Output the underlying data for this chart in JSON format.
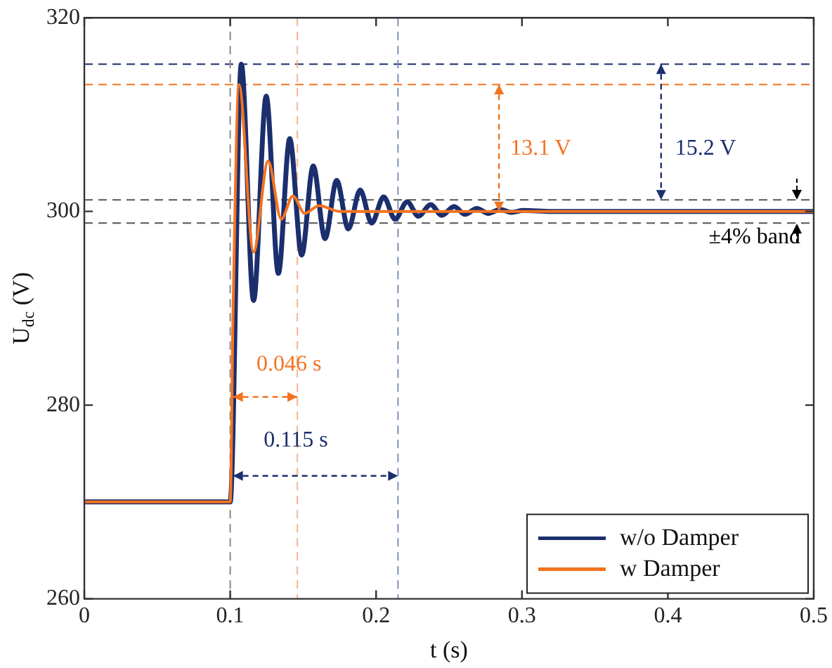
{
  "chart_data": {
    "type": "line",
    "xlabel": "t (s)",
    "ylabel": "U$_{dc}$ (V)",
    "xlim": [
      0,
      0.5
    ],
    "xticks": [
      0,
      0.1,
      0.2,
      0.3,
      0.4,
      0.5
    ],
    "ylim": [
      260,
      320
    ],
    "yticks": [
      260,
      280,
      300,
      320
    ],
    "grid": false,
    "legend": "bottom right",
    "marker": "none",
    "line_style": "solid",
    "series": [
      {
        "name": "w/o Damper",
        "color": "#1b2f6e",
        "x": [
          0,
          0.1,
          0.1076,
          0.116,
          0.1247,
          0.133,
          0.1408,
          0.149,
          0.1569,
          0.165,
          0.173,
          0.181,
          0.1891,
          0.197,
          0.2052,
          0.213,
          0.2213,
          0.229,
          0.2374,
          0.245,
          0.2535,
          0.261,
          0.269,
          0.277,
          0.285,
          0.293,
          0.301,
          0.32,
          0.5
        ],
        "values": [
          270,
          270,
          315.2,
          290.8,
          311.9,
          293.6,
          307.5,
          295.5,
          304.7,
          297.2,
          303.2,
          298.2,
          302.2,
          298.8,
          301.5,
          299.2,
          301.0,
          299.5,
          300.7,
          299.6,
          300.5,
          299.7,
          300.3,
          299.8,
          300.2,
          299.9,
          300.1,
          300,
          300
        ]
      },
      {
        "name": "w Damper",
        "color": "#f47320",
        "x": [
          0,
          0.1,
          0.102,
          0.106,
          0.116,
          0.126,
          0.135,
          0.143,
          0.151,
          0.161,
          0.175,
          0.5
        ],
        "values": [
          270,
          270,
          290,
          313.1,
          295.8,
          305.2,
          299.2,
          301.6,
          299.8,
          300.6,
          300,
          300
        ]
      }
    ],
    "ref_lines": [
      {
        "axis": "y",
        "value": 315.2,
        "color": "#1b2f6e",
        "line_style": "dashed"
      },
      {
        "axis": "y",
        "value": 313.1,
        "color": "#f47320",
        "line_style": "dashed"
      },
      {
        "axis": "y",
        "value": 301.2,
        "color": "#555555",
        "line_style": "dashed"
      },
      {
        "axis": "y",
        "value": 298.8,
        "color": "#555555",
        "line_style": "dashed"
      },
      {
        "axis": "x",
        "value": 0.1,
        "color": "#888888",
        "line_style": "dashed"
      },
      {
        "axis": "x",
        "value": 0.146,
        "color": "#f8b48a",
        "line_style": "dashed"
      },
      {
        "axis": "x",
        "value": 0.215,
        "color": "#7f8fb8",
        "line_style": "dashed"
      }
    ],
    "annotations": [
      "13.1 V",
      "15.2 V",
      "±4% band",
      "0.046 s",
      "0.115 s"
    ]
  }
}
